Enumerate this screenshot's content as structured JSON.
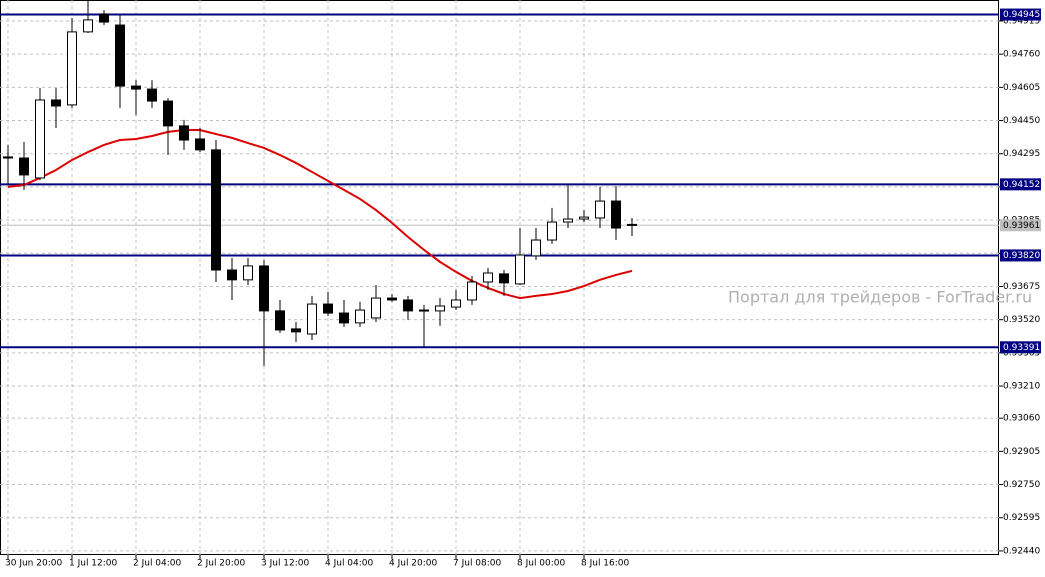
{
  "chart_data": {
    "type": "candlestick",
    "categories": [
      "30 Jun 20:00",
      null,
      null,
      null,
      "1 Jul 12:00",
      null,
      null,
      null,
      "2 Jul 04:00",
      null,
      null,
      null,
      "2 Jul 20:00",
      null,
      null,
      null,
      "3 Jul 12:00",
      null,
      null,
      null,
      "4 Jul 04:00",
      null,
      null,
      null,
      "4 Jul 20:00",
      null,
      null,
      null,
      "7 Jul 08:00",
      null,
      null,
      null,
      "8 Jul 00:00",
      null,
      null,
      null,
      "8 Jul 16:00",
      null,
      null,
      null
    ],
    "open": [
      0.9428,
      0.94275,
      0.94182,
      0.94546,
      0.94523,
      0.94864,
      0.94948,
      0.94896,
      0.94611,
      0.94597,
      0.94541,
      0.94425,
      0.94364,
      0.94313,
      0.93752,
      0.93706,
      0.93771,
      0.93561,
      0.93477,
      0.93453,
      0.93593,
      0.93551,
      0.93505,
      0.93528,
      0.93621,
      0.93612,
      0.93565,
      0.93561,
      0.93579,
      0.93612,
      0.93696,
      0.93734,
      0.93687,
      0.93818,
      0.93892,
      0.93976,
      0.9399,
      0.93995,
      0.94074,
      0.93965
    ],
    "high": [
      0.94336,
      0.9435,
      0.94602,
      0.94602,
      0.94929,
      0.95013,
      0.94966,
      0.94943,
      0.94639,
      0.94639,
      0.94555,
      0.94453,
      0.94415,
      0.94359,
      0.93808,
      0.93808,
      0.93799,
      0.93612,
      0.93509,
      0.93631,
      0.93649,
      0.93612,
      0.93603,
      0.93682,
      0.9364,
      0.93631,
      0.93589,
      0.93621,
      0.93659,
      0.93724,
      0.93762,
      0.93752,
      0.93948,
      0.93948,
      0.94042,
      0.94149,
      0.94032,
      0.9414,
      0.94144,
      0.93995
    ],
    "low": [
      0.94149,
      0.94126,
      0.94172,
      0.94415,
      0.94509,
      0.94859,
      0.94896,
      0.94509,
      0.94476,
      0.94509,
      0.94289,
      0.94313,
      0.94303,
      0.93696,
      0.93612,
      0.93682,
      0.93304,
      0.93458,
      0.93416,
      0.93425,
      0.93537,
      0.93486,
      0.93486,
      0.93509,
      0.93603,
      0.93519,
      0.93393,
      0.93491,
      0.93565,
      0.93589,
      0.93659,
      0.93631,
      0.93682,
      0.93799,
      0.93874,
      0.93948,
      0.93976,
      0.93948,
      0.93892,
      0.93911
    ],
    "close": [
      0.94275,
      0.94196,
      0.94546,
      0.94518,
      0.94864,
      0.9492,
      0.9491,
      0.94611,
      0.94597,
      0.94541,
      0.94425,
      0.94359,
      0.94313,
      0.93752,
      0.93706,
      0.93771,
      0.93561,
      0.93472,
      0.93463,
      0.93593,
      0.93551,
      0.93505,
      0.93565,
      0.93621,
      0.93612,
      0.93561,
      0.93561,
      0.93584,
      0.93612,
      0.93696,
      0.93738,
      0.93692,
      0.93822,
      0.93892,
      0.93976,
      0.9399,
      0.93999,
      0.94074,
      0.93948,
      0.93961
    ],
    "ma": {
      "color": "#dd0000",
      "values": [
        0.9414,
        0.94149,
        0.94182,
        0.94219,
        0.94266,
        0.94303,
        0.94336,
        0.94359,
        0.94364,
        0.94378,
        0.94397,
        0.94406,
        0.94406,
        0.94387,
        0.94369,
        0.94345,
        0.94322,
        0.94289,
        0.94252,
        0.9421,
        0.94168,
        0.94126,
        0.94084,
        0.94032,
        0.93972,
        0.93906,
        0.93846,
        0.9379,
        0.93743,
        0.93701,
        0.93668,
        0.9364,
        0.93621,
        0.93631,
        0.9364,
        0.93654,
        0.93677,
        0.93706,
        0.93729,
        0.93748
      ]
    },
    "levels": {
      "color": "#000080",
      "values": [
        0.94945,
        0.94152,
        {
          "value": 0.9382,
          "label": "0.93820"
        },
        0.93391
      ]
    },
    "current_price": 0.93961,
    "ylim": [
      0.92421,
      0.95013
    ],
    "yticks": [
      0.94915,
      {
        "value": 0.9476,
        "label": "0.94760"
      },
      0.94605,
      {
        "value": 0.9445,
        "label": "0.94450"
      },
      0.94295,
      {
        "value": 0.9414,
        "label": "0.94140"
      },
      0.93985,
      {
        "value": 0.9383,
        "label": "0.93830"
      },
      0.93675,
      {
        "value": 0.9352,
        "label": "0.93520"
      },
      0.93365,
      {
        "value": 0.9321,
        "label": "0.93210"
      },
      {
        "value": 0.9306,
        "label": "0.93060"
      },
      0.92905,
      {
        "value": 0.9275,
        "label": "0.92750"
      },
      0.92595,
      {
        "value": 0.9244,
        "label": "0.92440"
      }
    ],
    "grid": true,
    "watermark": "Портал для трейдеров - ForTrader.ru"
  }
}
